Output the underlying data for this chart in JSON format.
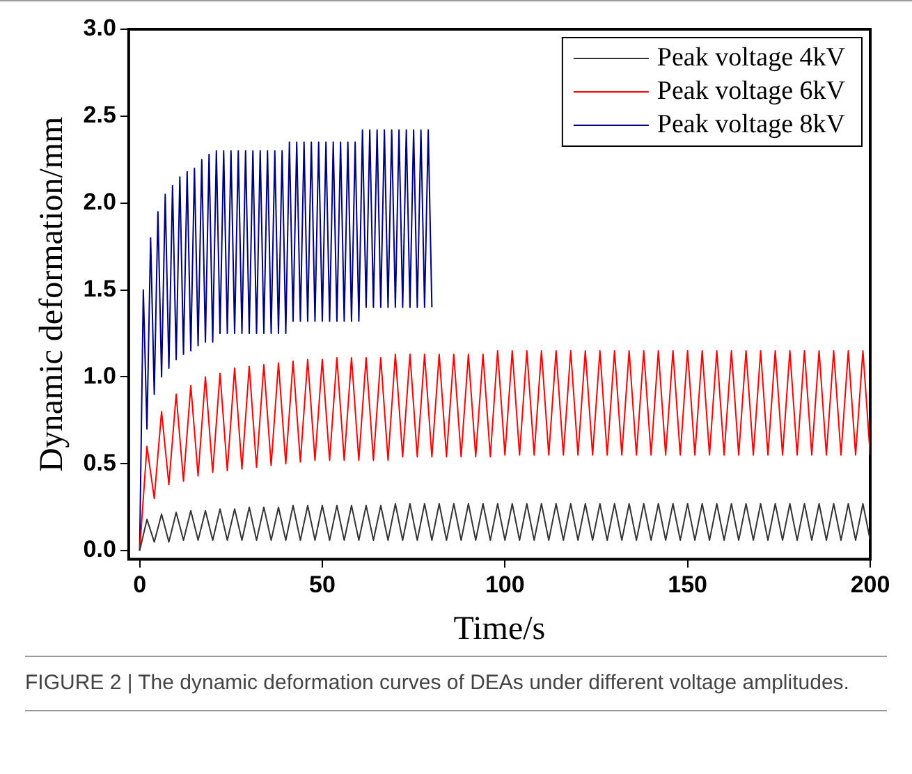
{
  "chart_data": {
    "type": "line",
    "xlabel": "Time/s",
    "ylabel": "Dynamic deformation/mm",
    "xlim": [
      -3,
      200
    ],
    "xticks": [
      0,
      50,
      100,
      150,
      200
    ],
    "ylim": [
      -0.05,
      3.0
    ],
    "yticks": [
      {
        "value": 0,
        "label": "0.0"
      },
      {
        "value": 0.5,
        "label": "0.5"
      },
      {
        "value": 1,
        "label": "1.0"
      },
      {
        "value": 1.5,
        "label": "1.5"
      },
      {
        "value": 2,
        "label": "2.0"
      },
      {
        "value": 2.5,
        "label": "2.5"
      },
      {
        "value": 3,
        "label": "3.0"
      }
    ],
    "grid": false,
    "legend": "top right",
    "marker": "none",
    "line_style": "solid",
    "annotations": [
      "FIGURE 2 | The dynamic deformation curves of DEAs under different voltage amplitudes."
    ],
    "series": [
      {
        "name": "Peak voltage 4kV",
        "color": "#333333",
        "x": [
          0,
          2,
          4,
          6,
          8,
          10,
          12,
          14,
          16,
          18,
          20,
          22,
          24,
          26,
          28,
          30,
          32,
          34,
          36,
          38,
          40,
          42,
          44,
          46,
          48,
          50,
          52,
          54,
          56,
          58,
          60,
          62,
          64,
          66,
          68,
          70,
          72,
          74,
          76,
          78,
          80,
          82,
          84,
          86,
          88,
          90,
          92,
          94,
          96,
          98,
          100,
          102,
          104,
          106,
          108,
          110,
          112,
          114,
          116,
          118,
          120,
          122,
          124,
          126,
          128,
          130,
          132,
          134,
          136,
          138,
          140,
          142,
          144,
          146,
          148,
          150,
          152,
          154,
          156,
          158,
          160,
          162,
          164,
          166,
          168,
          170,
          172,
          174,
          176,
          178,
          180,
          182,
          184,
          186,
          188,
          190,
          192,
          194,
          196,
          198,
          200
        ],
        "values": [
          0,
          0.18,
          0.05,
          0.21,
          0.05,
          0.22,
          0.06,
          0.23,
          0.06,
          0.23,
          0.06,
          0.24,
          0.06,
          0.24,
          0.06,
          0.25,
          0.06,
          0.25,
          0.06,
          0.25,
          0.06,
          0.26,
          0.06,
          0.26,
          0.06,
          0.26,
          0.06,
          0.26,
          0.06,
          0.26,
          0.06,
          0.26,
          0.06,
          0.26,
          0.06,
          0.27,
          0.06,
          0.27,
          0.06,
          0.27,
          0.06,
          0.27,
          0.06,
          0.27,
          0.06,
          0.27,
          0.06,
          0.27,
          0.06,
          0.27,
          0.06,
          0.27,
          0.06,
          0.27,
          0.06,
          0.27,
          0.06,
          0.27,
          0.06,
          0.27,
          0.06,
          0.27,
          0.06,
          0.27,
          0.06,
          0.27,
          0.06,
          0.27,
          0.06,
          0.27,
          0.06,
          0.27,
          0.06,
          0.27,
          0.06,
          0.27,
          0.06,
          0.27,
          0.06,
          0.27,
          0.06,
          0.27,
          0.06,
          0.27,
          0.06,
          0.27,
          0.06,
          0.27,
          0.06,
          0.27,
          0.06,
          0.27,
          0.06,
          0.27,
          0.06,
          0.27,
          0.06,
          0.27,
          0.06,
          0.27,
          0.06
        ]
      },
      {
        "name": "Peak voltage 6kV",
        "color": "#ff0000",
        "x": [
          0,
          2,
          4,
          6,
          8,
          10,
          12,
          14,
          16,
          18,
          20,
          22,
          24,
          26,
          28,
          30,
          32,
          34,
          36,
          38,
          40,
          42,
          44,
          46,
          48,
          50,
          52,
          54,
          56,
          58,
          60,
          62,
          64,
          66,
          68,
          70,
          72,
          74,
          76,
          78,
          80,
          82,
          84,
          86,
          88,
          90,
          92,
          94,
          96,
          98,
          100,
          102,
          104,
          106,
          108,
          110,
          112,
          114,
          116,
          118,
          120,
          122,
          124,
          126,
          128,
          130,
          132,
          134,
          136,
          138,
          140,
          142,
          144,
          146,
          148,
          150,
          152,
          154,
          156,
          158,
          160,
          162,
          164,
          166,
          168,
          170,
          172,
          174,
          176,
          178,
          180,
          182,
          184,
          186,
          188,
          190,
          192,
          194,
          196,
          198,
          200
        ],
        "values": [
          0,
          0.6,
          0.3,
          0.8,
          0.38,
          0.9,
          0.4,
          0.95,
          0.43,
          1.0,
          0.45,
          1.02,
          0.46,
          1.05,
          0.47,
          1.06,
          0.48,
          1.07,
          0.49,
          1.08,
          0.5,
          1.09,
          0.51,
          1.1,
          0.52,
          1.1,
          0.52,
          1.11,
          0.52,
          1.11,
          0.52,
          1.11,
          0.52,
          1.11,
          0.52,
          1.13,
          0.54,
          1.13,
          0.54,
          1.13,
          0.54,
          1.13,
          0.54,
          1.13,
          0.54,
          1.13,
          0.54,
          1.13,
          0.54,
          1.15,
          0.55,
          1.15,
          0.55,
          1.15,
          0.55,
          1.15,
          0.55,
          1.15,
          0.55,
          1.15,
          0.55,
          1.15,
          0.55,
          1.15,
          0.55,
          1.15,
          0.55,
          1.15,
          0.55,
          1.15,
          0.55,
          1.15,
          0.55,
          1.15,
          0.55,
          1.15,
          0.55,
          1.15,
          0.55,
          1.15,
          0.55,
          1.15,
          0.55,
          1.15,
          0.55,
          1.15,
          0.55,
          1.15,
          0.55,
          1.15,
          0.55,
          1.15,
          0.55,
          1.15,
          0.55,
          1.15,
          0.55,
          1.15,
          0.55,
          1.15,
          0.55
        ]
      },
      {
        "name": "Peak voltage 8kV",
        "color": "#000080",
        "x": [
          0,
          1,
          2,
          3,
          4,
          5,
          6,
          7,
          8,
          9,
          10,
          11,
          12,
          13,
          14,
          15,
          16,
          17,
          18,
          19,
          20,
          21,
          22,
          23,
          24,
          25,
          26,
          27,
          28,
          29,
          30,
          31,
          32,
          33,
          34,
          35,
          36,
          37,
          38,
          39,
          40,
          41,
          42,
          43,
          44,
          45,
          46,
          47,
          48,
          49,
          50,
          51,
          52,
          53,
          54,
          55,
          56,
          57,
          58,
          59,
          60,
          61,
          62,
          63,
          64,
          65,
          66,
          67,
          68,
          69,
          70,
          71,
          72,
          73,
          74,
          75,
          76,
          77,
          78,
          79,
          80
        ],
        "values": [
          0,
          1.5,
          0.7,
          1.8,
          0.9,
          1.95,
          1.0,
          2.05,
          1.05,
          2.1,
          1.1,
          2.15,
          1.13,
          2.18,
          1.15,
          2.2,
          1.18,
          2.25,
          1.2,
          2.28,
          1.2,
          2.3,
          1.25,
          2.3,
          1.25,
          2.3,
          1.25,
          2.3,
          1.25,
          2.3,
          1.25,
          2.3,
          1.25,
          2.3,
          1.25,
          2.3,
          1.25,
          2.3,
          1.25,
          2.3,
          1.25,
          2.35,
          1.32,
          2.35,
          1.32,
          2.35,
          1.32,
          2.35,
          1.32,
          2.35,
          1.32,
          2.35,
          1.32,
          2.35,
          1.32,
          2.35,
          1.32,
          2.35,
          1.32,
          2.35,
          1.32,
          2.42,
          1.4,
          2.42,
          1.4,
          2.42,
          1.4,
          2.42,
          1.4,
          2.42,
          1.4,
          2.42,
          1.4,
          2.42,
          1.4,
          2.42,
          1.4,
          2.42,
          1.4,
          2.42,
          1.4
        ]
      }
    ]
  }
}
